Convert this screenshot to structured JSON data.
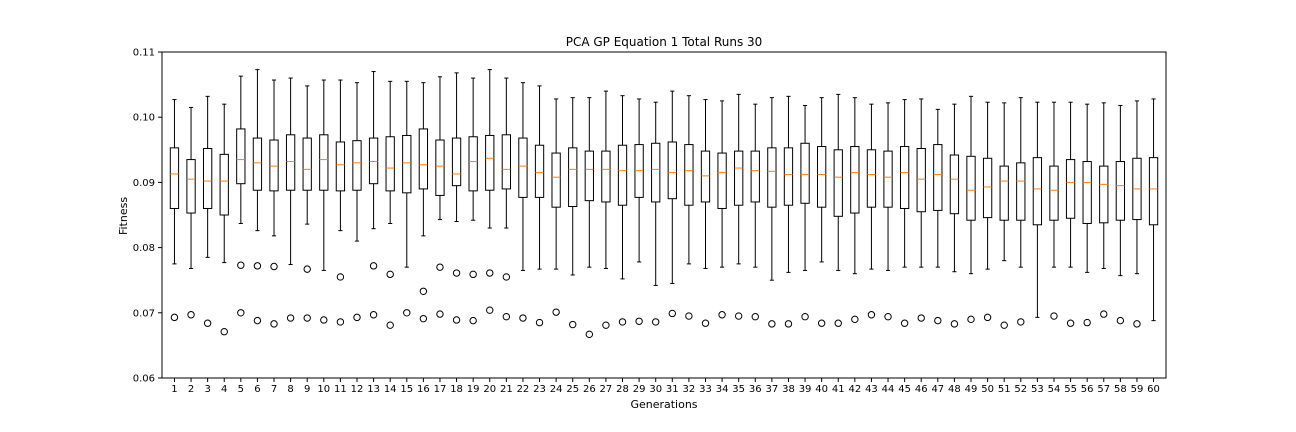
{
  "chart_data": {
    "type": "boxplot",
    "title": "PCA GP Equation 1 Total Runs 30",
    "xlabel": "Generations",
    "ylabel": "Fitness",
    "ylim": [
      0.06,
      0.11
    ],
    "yticks": [
      "0.06",
      "0.07",
      "0.08",
      "0.09",
      "0.10",
      "0.11"
    ],
    "grid": false,
    "colors": {
      "box": "#000000",
      "median": "#ff7f0e",
      "outlier": "#000000"
    },
    "categories": [
      "1",
      "2",
      "3",
      "4",
      "5",
      "6",
      "7",
      "8",
      "9",
      "10",
      "11",
      "12",
      "13",
      "14",
      "15",
      "16",
      "17",
      "18",
      "19",
      "20",
      "21",
      "22",
      "23",
      "24",
      "25",
      "26",
      "27",
      "28",
      "29",
      "30",
      "31",
      "32",
      "33",
      "34",
      "35",
      "36",
      "37",
      "38",
      "39",
      "40",
      "41",
      "42",
      "43",
      "44",
      "45",
      "46",
      "47",
      "48",
      "49",
      "50",
      "51",
      "52",
      "53",
      "54",
      "55",
      "56",
      "57",
      "58",
      "59",
      "60"
    ],
    "boxes": [
      {
        "min": 0.0775,
        "q1": 0.086,
        "median": 0.0913,
        "q3": 0.0953,
        "max": 0.1027,
        "outliers": [
          0.0693
        ]
      },
      {
        "min": 0.0768,
        "q1": 0.0853,
        "median": 0.0905,
        "q3": 0.0935,
        "max": 0.1015,
        "outliers": [
          0.0697
        ]
      },
      {
        "min": 0.0785,
        "q1": 0.086,
        "median": 0.0902,
        "q3": 0.0952,
        "max": 0.1032,
        "outliers": [
          0.0684
        ]
      },
      {
        "min": 0.0777,
        "q1": 0.085,
        "median": 0.0902,
        "q3": 0.0943,
        "max": 0.102,
        "outliers": [
          0.0671
        ]
      },
      {
        "min": 0.0837,
        "q1": 0.0898,
        "median": 0.0935,
        "q3": 0.0982,
        "max": 0.1063,
        "outliers": [
          0.0773,
          0.07
        ]
      },
      {
        "min": 0.0826,
        "q1": 0.0888,
        "median": 0.093,
        "q3": 0.0968,
        "max": 0.1073,
        "outliers": [
          0.0772,
          0.0688
        ]
      },
      {
        "min": 0.0818,
        "q1": 0.0887,
        "median": 0.0925,
        "q3": 0.0965,
        "max": 0.1057,
        "outliers": [
          0.0771,
          0.0683
        ]
      },
      {
        "min": 0.0774,
        "q1": 0.0888,
        "median": 0.0932,
        "q3": 0.0973,
        "max": 0.106,
        "outliers": [
          0.0692
        ]
      },
      {
        "min": 0.0836,
        "q1": 0.0888,
        "median": 0.092,
        "q3": 0.0968,
        "max": 0.1048,
        "outliers": [
          0.0767,
          0.0692
        ]
      },
      {
        "min": 0.0765,
        "q1": 0.0888,
        "median": 0.0935,
        "q3": 0.0973,
        "max": 0.1057,
        "outliers": [
          0.0689
        ]
      },
      {
        "min": 0.0826,
        "q1": 0.0887,
        "median": 0.0927,
        "q3": 0.0962,
        "max": 0.1057,
        "outliers": [
          0.0755,
          0.0686
        ]
      },
      {
        "min": 0.081,
        "q1": 0.0888,
        "median": 0.093,
        "q3": 0.0964,
        "max": 0.1053,
        "outliers": [
          0.0693
        ]
      },
      {
        "min": 0.0829,
        "q1": 0.0898,
        "median": 0.0932,
        "q3": 0.0968,
        "max": 0.107,
        "outliers": [
          0.0772,
          0.0697
        ]
      },
      {
        "min": 0.0837,
        "q1": 0.0887,
        "median": 0.0922,
        "q3": 0.097,
        "max": 0.1055,
        "outliers": [
          0.0759,
          0.0681
        ]
      },
      {
        "min": 0.077,
        "q1": 0.0884,
        "median": 0.093,
        "q3": 0.0972,
        "max": 0.1055,
        "outliers": [
          0.07
        ]
      },
      {
        "min": 0.0818,
        "q1": 0.089,
        "median": 0.0927,
        "q3": 0.0982,
        "max": 0.1053,
        "outliers": [
          0.0733,
          0.0691
        ]
      },
      {
        "min": 0.0843,
        "q1": 0.088,
        "median": 0.0925,
        "q3": 0.0965,
        "max": 0.1062,
        "outliers": [
          0.077,
          0.0698
        ]
      },
      {
        "min": 0.084,
        "q1": 0.0895,
        "median": 0.0913,
        "q3": 0.0968,
        "max": 0.1068,
        "outliers": [
          0.0761,
          0.0689
        ]
      },
      {
        "min": 0.0842,
        "q1": 0.0887,
        "median": 0.0932,
        "q3": 0.097,
        "max": 0.106,
        "outliers": [
          0.0759,
          0.0688
        ]
      },
      {
        "min": 0.083,
        "q1": 0.0888,
        "median": 0.0937,
        "q3": 0.0972,
        "max": 0.1073,
        "outliers": [
          0.0761,
          0.0704
        ]
      },
      {
        "min": 0.083,
        "q1": 0.089,
        "median": 0.092,
        "q3": 0.0973,
        "max": 0.106,
        "outliers": [
          0.0755,
          0.0694
        ]
      },
      {
        "min": 0.0765,
        "q1": 0.0877,
        "median": 0.0925,
        "q3": 0.0968,
        "max": 0.1053,
        "outliers": [
          0.0692
        ]
      },
      {
        "min": 0.0767,
        "q1": 0.0877,
        "median": 0.0915,
        "q3": 0.0957,
        "max": 0.1048,
        "outliers": [
          0.0685
        ]
      },
      {
        "min": 0.0767,
        "q1": 0.0862,
        "median": 0.0908,
        "q3": 0.0945,
        "max": 0.1028,
        "outliers": [
          0.0701
        ]
      },
      {
        "min": 0.0758,
        "q1": 0.0863,
        "median": 0.092,
        "q3": 0.0953,
        "max": 0.103,
        "outliers": [
          0.0682
        ]
      },
      {
        "min": 0.077,
        "q1": 0.0872,
        "median": 0.092,
        "q3": 0.0948,
        "max": 0.103,
        "outliers": [
          0.0667
        ]
      },
      {
        "min": 0.0768,
        "q1": 0.087,
        "median": 0.092,
        "q3": 0.0948,
        "max": 0.104,
        "outliers": [
          0.0681
        ]
      },
      {
        "min": 0.0752,
        "q1": 0.0865,
        "median": 0.0918,
        "q3": 0.0957,
        "max": 0.1033,
        "outliers": [
          0.0686
        ]
      },
      {
        "min": 0.0778,
        "q1": 0.0877,
        "median": 0.0918,
        "q3": 0.0958,
        "max": 0.1028,
        "outliers": [
          0.0687
        ]
      },
      {
        "min": 0.0742,
        "q1": 0.087,
        "median": 0.092,
        "q3": 0.096,
        "max": 0.1023,
        "outliers": [
          0.0686
        ]
      },
      {
        "min": 0.0745,
        "q1": 0.0875,
        "median": 0.0915,
        "q3": 0.0962,
        "max": 0.104,
        "outliers": [
          0.0699
        ]
      },
      {
        "min": 0.0775,
        "q1": 0.0865,
        "median": 0.0918,
        "q3": 0.0958,
        "max": 0.1033,
        "outliers": [
          0.0695
        ]
      },
      {
        "min": 0.0768,
        "q1": 0.087,
        "median": 0.091,
        "q3": 0.0948,
        "max": 0.1027,
        "outliers": [
          0.0684
        ]
      },
      {
        "min": 0.077,
        "q1": 0.086,
        "median": 0.0915,
        "q3": 0.0945,
        "max": 0.1025,
        "outliers": [
          0.0697
        ]
      },
      {
        "min": 0.0775,
        "q1": 0.0865,
        "median": 0.0922,
        "q3": 0.0948,
        "max": 0.1035,
        "outliers": [
          0.0695
        ]
      },
      {
        "min": 0.077,
        "q1": 0.087,
        "median": 0.0918,
        "q3": 0.0948,
        "max": 0.102,
        "outliers": [
          0.0694
        ]
      },
      {
        "min": 0.075,
        "q1": 0.0862,
        "median": 0.0917,
        "q3": 0.0953,
        "max": 0.103,
        "outliers": [
          0.0683
        ]
      },
      {
        "min": 0.0762,
        "q1": 0.0865,
        "median": 0.0912,
        "q3": 0.0953,
        "max": 0.1032,
        "outliers": [
          0.0683
        ]
      },
      {
        "min": 0.0765,
        "q1": 0.0868,
        "median": 0.0912,
        "q3": 0.096,
        "max": 0.1018,
        "outliers": [
          0.0694
        ]
      },
      {
        "min": 0.0778,
        "q1": 0.0862,
        "median": 0.0912,
        "q3": 0.0955,
        "max": 0.103,
        "outliers": [
          0.0684
        ]
      },
      {
        "min": 0.0765,
        "q1": 0.0848,
        "median": 0.0908,
        "q3": 0.095,
        "max": 0.1035,
        "outliers": [
          0.0684
        ]
      },
      {
        "min": 0.076,
        "q1": 0.0853,
        "median": 0.0915,
        "q3": 0.0955,
        "max": 0.103,
        "outliers": [
          0.069
        ]
      },
      {
        "min": 0.0767,
        "q1": 0.0862,
        "median": 0.0912,
        "q3": 0.095,
        "max": 0.102,
        "outliers": [
          0.0697
        ]
      },
      {
        "min": 0.0765,
        "q1": 0.0862,
        "median": 0.0908,
        "q3": 0.0948,
        "max": 0.1022,
        "outliers": [
          0.0694
        ]
      },
      {
        "min": 0.077,
        "q1": 0.086,
        "median": 0.0915,
        "q3": 0.0955,
        "max": 0.1027,
        "outliers": [
          0.0684
        ]
      },
      {
        "min": 0.077,
        "q1": 0.0855,
        "median": 0.0905,
        "q3": 0.0952,
        "max": 0.1028,
        "outliers": [
          0.0692
        ]
      },
      {
        "min": 0.077,
        "q1": 0.0857,
        "median": 0.0912,
        "q3": 0.0958,
        "max": 0.1012,
        "outliers": [
          0.0688
        ]
      },
      {
        "min": 0.0763,
        "q1": 0.0852,
        "median": 0.0905,
        "q3": 0.0942,
        "max": 0.102,
        "outliers": [
          0.0683
        ]
      },
      {
        "min": 0.076,
        "q1": 0.0842,
        "median": 0.0888,
        "q3": 0.094,
        "max": 0.1032,
        "outliers": [
          0.069
        ]
      },
      {
        "min": 0.0767,
        "q1": 0.0846,
        "median": 0.0893,
        "q3": 0.0937,
        "max": 0.1023,
        "outliers": [
          0.0693
        ]
      },
      {
        "min": 0.078,
        "q1": 0.0842,
        "median": 0.0902,
        "q3": 0.0925,
        "max": 0.1022,
        "outliers": [
          0.0681
        ]
      },
      {
        "min": 0.077,
        "q1": 0.0842,
        "median": 0.0902,
        "q3": 0.093,
        "max": 0.103,
        "outliers": [
          0.0686
        ]
      },
      {
        "min": 0.0693,
        "q1": 0.0835,
        "median": 0.089,
        "q3": 0.0938,
        "max": 0.1023,
        "outliers": []
      },
      {
        "min": 0.077,
        "q1": 0.0842,
        "median": 0.0888,
        "q3": 0.0925,
        "max": 0.1023,
        "outliers": [
          0.0695
        ]
      },
      {
        "min": 0.077,
        "q1": 0.0845,
        "median": 0.09,
        "q3": 0.0935,
        "max": 0.1023,
        "outliers": [
          0.0684
        ]
      },
      {
        "min": 0.0762,
        "q1": 0.0837,
        "median": 0.09,
        "q3": 0.0932,
        "max": 0.102,
        "outliers": [
          0.0685
        ]
      },
      {
        "min": 0.0768,
        "q1": 0.0838,
        "median": 0.0897,
        "q3": 0.0925,
        "max": 0.1022,
        "outliers": [
          0.0698
        ]
      },
      {
        "min": 0.0757,
        "q1": 0.0842,
        "median": 0.0895,
        "q3": 0.0932,
        "max": 0.1018,
        "outliers": [
          0.0688
        ]
      },
      {
        "min": 0.076,
        "q1": 0.0843,
        "median": 0.089,
        "q3": 0.0937,
        "max": 0.1025,
        "outliers": [
          0.0683
        ]
      },
      {
        "min": 0.0688,
        "q1": 0.0835,
        "median": 0.089,
        "q3": 0.0938,
        "max": 0.1028,
        "outliers": []
      }
    ]
  }
}
